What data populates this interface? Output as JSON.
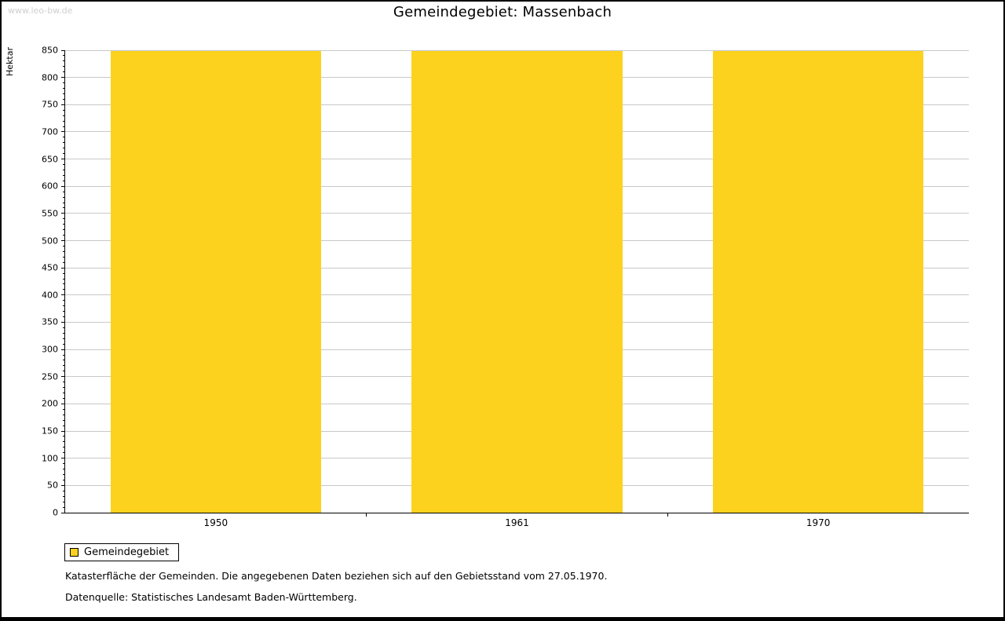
{
  "page": {
    "watermark": "www.leo-bw.de",
    "title": "Gemeindegebiet: Massenbach",
    "footnote1": "Katasterfläche der Gemeinden. Die angegebenen Daten beziehen sich auf den Gebietsstand vom 27.05.1970.",
    "footnote2": "Datenquelle: Statistisches Landesamt Baden-Württemberg."
  },
  "chart_data": {
    "type": "bar",
    "title": "Gemeindegebiet: Massenbach",
    "categories": [
      "1950",
      "1961",
      "1970"
    ],
    "series": [
      {
        "name": "Gemeindegebiet",
        "values": [
          848,
          848,
          848
        ],
        "color": "#FCD21E"
      }
    ],
    "xlabel": "",
    "ylabel": "Hektar",
    "ylim": [
      0,
      850
    ],
    "ytick_step": 50,
    "minor_tick_step": 10,
    "grid": true,
    "grid_color": "#c8c8c8",
    "legend_position": "bottom-left",
    "legend_entries": [
      "Gemeindegebiet"
    ]
  },
  "legend": {
    "items": [
      {
        "label": "Gemeindegebiet",
        "color": "#FCD21E"
      }
    ]
  }
}
